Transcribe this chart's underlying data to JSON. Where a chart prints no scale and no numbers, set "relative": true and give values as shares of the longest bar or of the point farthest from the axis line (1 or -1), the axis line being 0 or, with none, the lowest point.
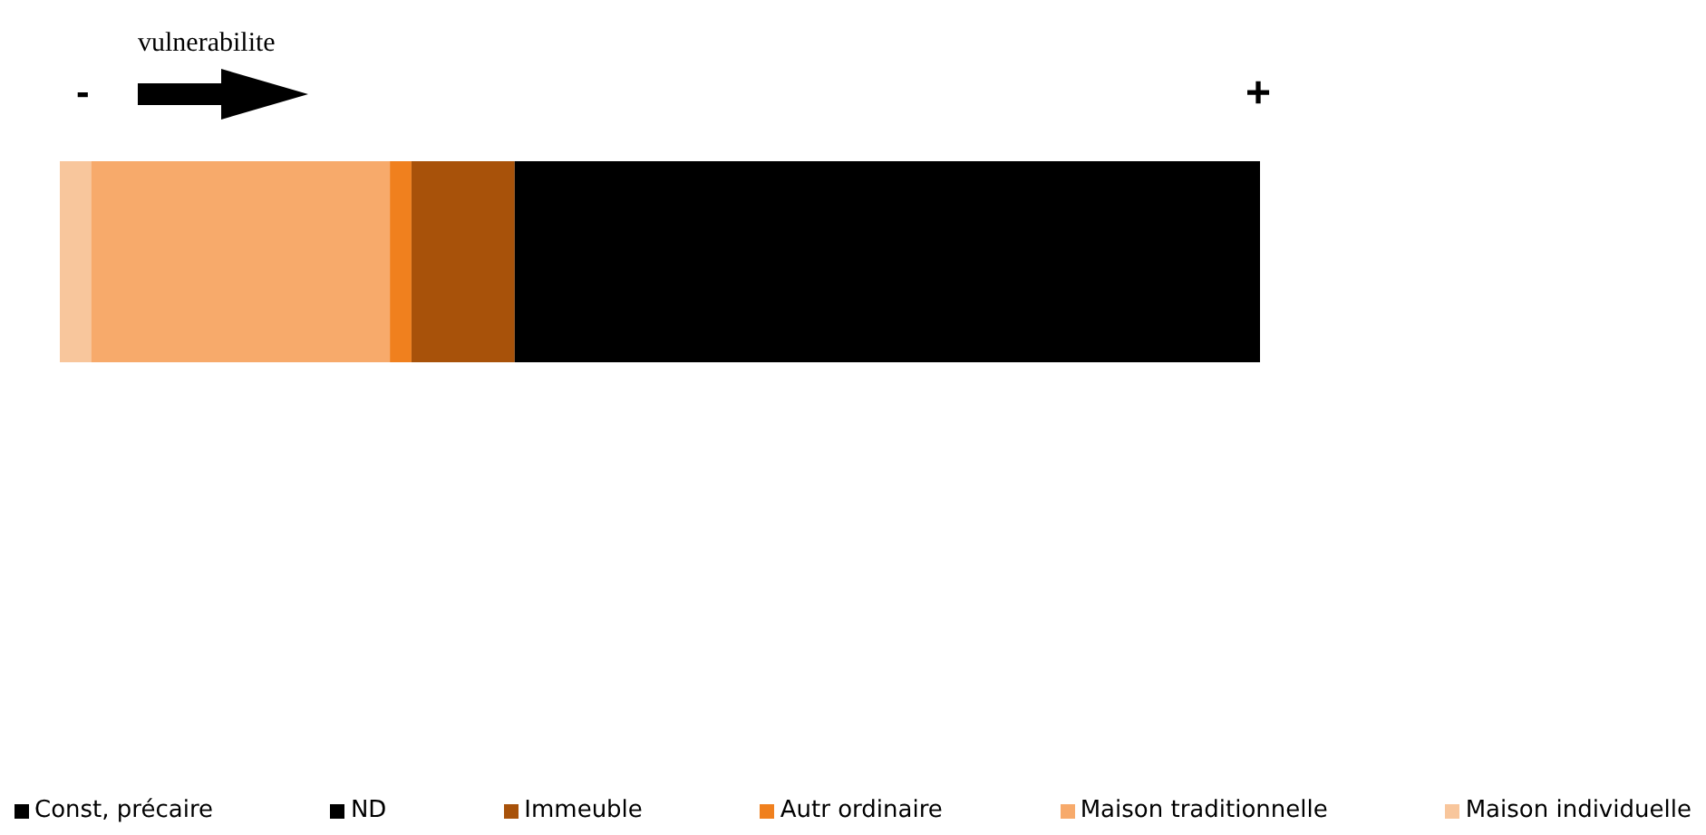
{
  "chart_data": {
    "type": "bar",
    "orientation": "horizontal",
    "stacked": true,
    "relative": true,
    "categories": [
      null
    ],
    "legend": "bottom",
    "annotations": [
      "vulnerabilite",
      "-",
      "+"
    ],
    "series": [
      {
        "name": "Maison individuelle",
        "color": "#f8c69c",
        "values": [
          0.026
        ]
      },
      {
        "name": "Maison traditionnelle",
        "color": "#f7aa6b",
        "values": [
          0.249
        ]
      },
      {
        "name": "Autr ordinaire",
        "color": "#f0801e",
        "values": [
          0.018
        ]
      },
      {
        "name": "Immeuble",
        "color": "#a8520a",
        "values": [
          0.086
        ]
      },
      {
        "name": "ND",
        "color": "#000000",
        "values": [
          0
        ]
      },
      {
        "name": "Const, précaire",
        "color": "#000000",
        "values": [
          0.621
        ]
      }
    ]
  }
}
